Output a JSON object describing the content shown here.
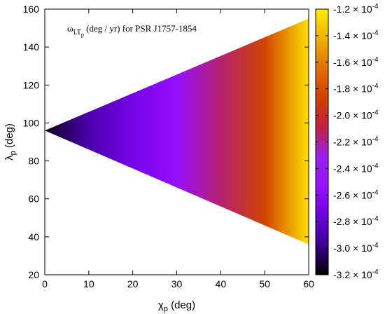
{
  "chart_data": {
    "type": "heatmap",
    "title": "",
    "annotation": {
      "symbol": "ω",
      "subscript": "LT",
      "sub_subscript": "p",
      "text": "(deg / yr) for PSR J1757-1854"
    },
    "x_axis": {
      "label_symbol": "χ",
      "label_subscript": "p",
      "label_unit": "(deg)",
      "range": [
        0,
        60
      ],
      "ticks": [
        "0",
        "10",
        "20",
        "30",
        "40",
        "50",
        "60"
      ],
      "tick_values": [
        0,
        10,
        20,
        30,
        40,
        50,
        60
      ]
    },
    "y_axis": {
      "label_symbol": "λ",
      "label_subscript": "p",
      "label_unit": "(deg)",
      "range": [
        20,
        160
      ],
      "ticks": [
        "20",
        "40",
        "60",
        "80",
        "100",
        "120",
        "140",
        "160"
      ],
      "tick_values": [
        20,
        40,
        60,
        80,
        100,
        120,
        140,
        160
      ]
    },
    "colorbar": {
      "range": [
        -0.00032,
        -0.00012
      ],
      "ticks": [
        {
          "value": -0.00012,
          "mantissa": "-1.2 × 10",
          "exp": "-4"
        },
        {
          "value": -0.00014,
          "mantissa": "-1.4 × 10",
          "exp": "-4"
        },
        {
          "value": -0.00016,
          "mantissa": "-1.6 × 10",
          "exp": "-4"
        },
        {
          "value": -0.00018,
          "mantissa": "-1.8 × 10",
          "exp": "-4"
        },
        {
          "value": -0.0002,
          "mantissa": "-2.0 × 10",
          "exp": "-4"
        },
        {
          "value": -0.00022,
          "mantissa": "-2.2 × 10",
          "exp": "-4"
        },
        {
          "value": -0.00024,
          "mantissa": "-2.4 × 10",
          "exp": "-4"
        },
        {
          "value": -0.00026,
          "mantissa": "-2.6 × 10",
          "exp": "-4"
        },
        {
          "value": -0.00028,
          "mantissa": "-2.8 × 10",
          "exp": "-4"
        },
        {
          "value": -0.0003,
          "mantissa": "-3.0 × 10",
          "exp": "-4"
        },
        {
          "value": -0.00032,
          "mantissa": "-3.2 × 10",
          "exp": "-4"
        }
      ],
      "palette": [
        "#000000",
        "#3a0090",
        "#6a00e0",
        "#9a10ff",
        "#9a20f0",
        "#c02040",
        "#d04000",
        "#e07000",
        "#f0b000",
        "#ffee00"
      ]
    },
    "region": {
      "description_vertex": [
        0,
        96
      ],
      "upper_edge": [
        [
          0,
          96
        ],
        [
          60,
          155
        ]
      ],
      "lower_edge": [
        [
          0,
          96
        ],
        [
          60,
          36
        ]
      ]
    },
    "value_profile_by_x": [
      {
        "x": 0,
        "value": -0.000315
      },
      {
        "x": 10,
        "value": -0.00029
      },
      {
        "x": 20,
        "value": -0.00027
      },
      {
        "x": 30,
        "value": -0.000255
      },
      {
        "x": 40,
        "value": -0.000215
      },
      {
        "x": 50,
        "value": -0.000185
      },
      {
        "x": 60,
        "value": -0.000125
      }
    ],
    "grid": false
  }
}
